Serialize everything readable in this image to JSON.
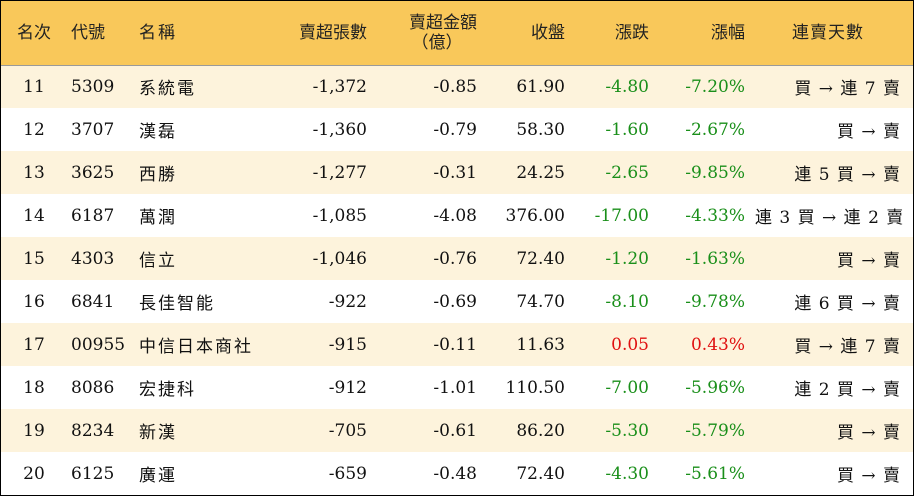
{
  "headers": {
    "rank": "名次",
    "code": "代號",
    "name": "名稱",
    "net_sell_lots": "賣超張數",
    "net_sell_amount": "賣超金額",
    "net_sell_amount_unit": "（億）",
    "close": "收盤",
    "change": "漲跌",
    "change_pct": "漲幅",
    "streak": "連賣天數"
  },
  "rows": [
    {
      "rank": "11",
      "code": "5309",
      "name": "系統電",
      "lots": "-1,372",
      "amount": "-0.85",
      "close": "61.90",
      "change": "-4.80",
      "pct": "-7.20%",
      "streak": "買 → 連 7 賣",
      "dir": "down"
    },
    {
      "rank": "12",
      "code": "3707",
      "name": "漢磊",
      "lots": "-1,360",
      "amount": "-0.79",
      "close": "58.30",
      "change": "-1.60",
      "pct": "-2.67%",
      "streak": "買 → 賣",
      "dir": "down"
    },
    {
      "rank": "13",
      "code": "3625",
      "name": "西勝",
      "lots": "-1,277",
      "amount": "-0.31",
      "close": "24.25",
      "change": "-2.65",
      "pct": "-9.85%",
      "streak": "連 5 買 → 賣",
      "dir": "down"
    },
    {
      "rank": "14",
      "code": "6187",
      "name": "萬潤",
      "lots": "-1,085",
      "amount": "-4.08",
      "close": "376.00",
      "change": "-17.00",
      "pct": "-4.33%",
      "streak": "連 3 買 → 連 2 賣",
      "dir": "down"
    },
    {
      "rank": "15",
      "code": "4303",
      "name": "信立",
      "lots": "-1,046",
      "amount": "-0.76",
      "close": "72.40",
      "change": "-1.20",
      "pct": "-1.63%",
      "streak": "買 → 賣",
      "dir": "down"
    },
    {
      "rank": "16",
      "code": "6841",
      "name": "長佳智能",
      "lots": "-922",
      "amount": "-0.69",
      "close": "74.70",
      "change": "-8.10",
      "pct": "-9.78%",
      "streak": "連 6 買 → 賣",
      "dir": "down"
    },
    {
      "rank": "17",
      "code": "00955",
      "name": "中信日本商社",
      "lots": "-915",
      "amount": "-0.11",
      "close": "11.63",
      "change": "0.05",
      "pct": "0.43%",
      "streak": "買 → 連 7 賣",
      "dir": "up"
    },
    {
      "rank": "18",
      "code": "8086",
      "name": "宏捷科",
      "lots": "-912",
      "amount": "-1.01",
      "close": "110.50",
      "change": "-7.00",
      "pct": "-5.96%",
      "streak": "連 2 買 → 賣",
      "dir": "down"
    },
    {
      "rank": "19",
      "code": "8234",
      "name": "新漢",
      "lots": "-705",
      "amount": "-0.61",
      "close": "86.20",
      "change": "-5.30",
      "pct": "-5.79%",
      "streak": "買 → 賣",
      "dir": "down"
    },
    {
      "rank": "20",
      "code": "6125",
      "name": "廣運",
      "lots": "-659",
      "amount": "-0.48",
      "close": "72.40",
      "change": "-4.30",
      "pct": "-5.61%",
      "streak": "買 → 賣",
      "dir": "down"
    }
  ],
  "colors": {
    "header_bg": "#f9c85a",
    "odd_row_bg": "#fdf3dc",
    "up": "#e01010",
    "down": "#1a8f1a"
  }
}
